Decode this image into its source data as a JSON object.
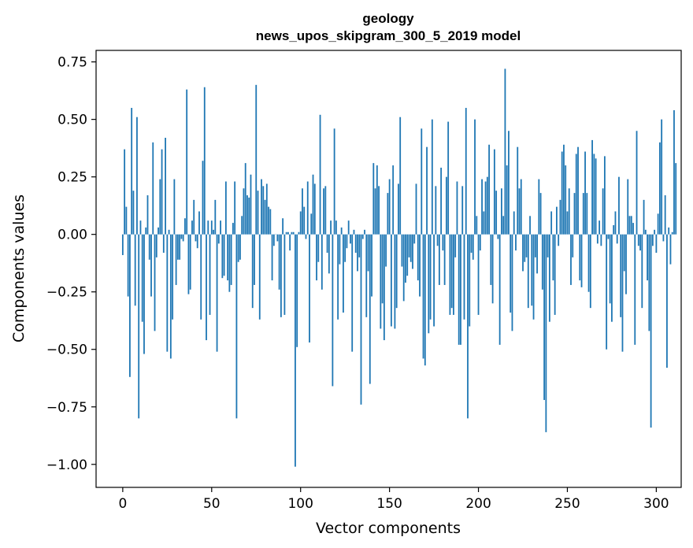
{
  "chart_data": {
    "type": "bar",
    "title": "geology",
    "subtitle": "news_upos_skipgram_300_5_2019 model",
    "xlabel": "Vector components",
    "ylabel": "Components values",
    "xlim": [
      -15,
      314
    ],
    "ylim": [
      -1.1,
      0.8
    ],
    "xticks": [
      0,
      50,
      100,
      150,
      200,
      250,
      300
    ],
    "xtick_labels": [
      "0",
      "50",
      "100",
      "150",
      "200",
      "250",
      "300"
    ],
    "yticks": [
      0.75,
      0.5,
      0.25,
      0.0,
      -0.25,
      -0.5,
      -0.75,
      -1.0
    ],
    "ytick_labels": [
      "0.75",
      "0.50",
      "0.25",
      "0.00",
      "−0.25",
      "−0.50",
      "−0.75",
      "−1.00"
    ],
    "color": "#1f77b4",
    "values": [
      -0.09,
      0.37,
      0.12,
      -0.27,
      -0.62,
      0.55,
      0.19,
      -0.31,
      0.51,
      -0.8,
      0.06,
      -0.38,
      -0.52,
      0.03,
      0.17,
      -0.11,
      -0.27,
      0.4,
      -0.42,
      -0.1,
      0.03,
      0.24,
      0.37,
      -0.08,
      0.42,
      -0.51,
      0.02,
      -0.54,
      -0.37,
      0.24,
      -0.22,
      -0.11,
      -0.11,
      -0.02,
      -0.03,
      0.07,
      0.63,
      -0.26,
      -0.24,
      0.06,
      0.15,
      -0.03,
      -0.06,
      0.1,
      -0.37,
      0.32,
      0.64,
      -0.46,
      0.06,
      -0.35,
      0.06,
      0.02,
      0.15,
      -0.51,
      -0.04,
      0.06,
      -0.19,
      -0.18,
      0.23,
      -0.2,
      -0.25,
      -0.22,
      0.05,
      0.23,
      -0.8,
      -0.12,
      -0.11,
      0.08,
      0.2,
      0.31,
      0.17,
      0.16,
      0.26,
      -0.32,
      -0.22,
      0.65,
      0.19,
      -0.37,
      0.24,
      0.21,
      0.15,
      0.22,
      0.12,
      0.11,
      -0.2,
      -0.05,
      0.0,
      -0.03,
      -0.24,
      -0.36,
      0.07,
      -0.35,
      0.01,
      0.01,
      -0.07,
      0.01,
      0.01,
      -1.01,
      -0.49,
      0.01,
      0.1,
      0.2,
      0.12,
      -0.02,
      0.23,
      -0.47,
      0.09,
      0.26,
      0.22,
      -0.2,
      -0.12,
      0.52,
      -0.24,
      0.2,
      0.21,
      -0.08,
      -0.17,
      0.06,
      -0.66,
      0.46,
      0.06,
      -0.37,
      -0.13,
      0.03,
      -0.34,
      -0.12,
      -0.06,
      0.06,
      -0.04,
      -0.51,
      0.02,
      -0.08,
      -0.16,
      -0.1,
      -0.74,
      -0.02,
      0.02,
      -0.36,
      -0.16,
      -0.65,
      -0.27,
      0.31,
      0.2,
      0.3,
      0.21,
      -0.41,
      -0.3,
      -0.46,
      -0.14,
      0.18,
      0.24,
      -0.4,
      0.3,
      -0.41,
      -0.32,
      0.22,
      0.51,
      -0.14,
      -0.29,
      -0.21,
      -0.18,
      -0.1,
      -0.12,
      -0.15,
      -0.04,
      0.22,
      -0.2,
      -0.27,
      0.46,
      -0.54,
      -0.57,
      0.38,
      -0.43,
      -0.37,
      0.5,
      -0.4,
      0.21,
      -0.05,
      -0.22,
      0.29,
      -0.07,
      -0.22,
      0.25,
      0.49,
      -0.35,
      -0.32,
      -0.35,
      -0.1,
      0.23,
      -0.48,
      -0.48,
      0.21,
      -0.37,
      0.55,
      -0.8,
      -0.4,
      -0.08,
      -0.11,
      0.5,
      0.08,
      -0.35,
      -0.07,
      0.24,
      0.1,
      0.23,
      0.25,
      0.39,
      -0.22,
      -0.3,
      0.37,
      0.19,
      -0.02,
      -0.48,
      0.2,
      0.08,
      0.72,
      0.3,
      0.45,
      -0.34,
      -0.42,
      0.1,
      -0.07,
      0.38,
      0.2,
      0.24,
      -0.16,
      -0.12,
      -0.1,
      -0.32,
      0.08,
      -0.31,
      -0.37,
      -0.1,
      -0.17,
      0.24,
      0.18,
      -0.24,
      -0.72,
      -0.86,
      -0.1,
      -0.38,
      0.1,
      -0.2,
      -0.35,
      0.12,
      -0.05,
      0.15,
      0.36,
      0.39,
      0.3,
      0.1,
      0.2,
      -0.22,
      -0.1,
      0.18,
      0.35,
      0.38,
      -0.2,
      -0.23,
      0.18,
      0.36,
      0.18,
      -0.25,
      -0.32,
      0.41,
      0.35,
      0.33,
      -0.04,
      0.06,
      -0.05,
      0.2,
      0.34,
      -0.5,
      -0.02,
      -0.3,
      -0.38,
      0.04,
      0.1,
      -0.04,
      0.25,
      -0.36,
      -0.51,
      -0.16,
      -0.26,
      0.24,
      0.08,
      0.08,
      0.05,
      -0.48,
      0.45,
      -0.05,
      -0.07,
      -0.32,
      0.15,
      0.02,
      -0.2,
      -0.42,
      -0.84,
      -0.05,
      0.02,
      -0.08,
      0.09,
      0.4,
      0.5,
      -0.03,
      0.17,
      -0.58,
      0.03,
      -0.13,
      0.01,
      0.54,
      0.31
    ]
  }
}
